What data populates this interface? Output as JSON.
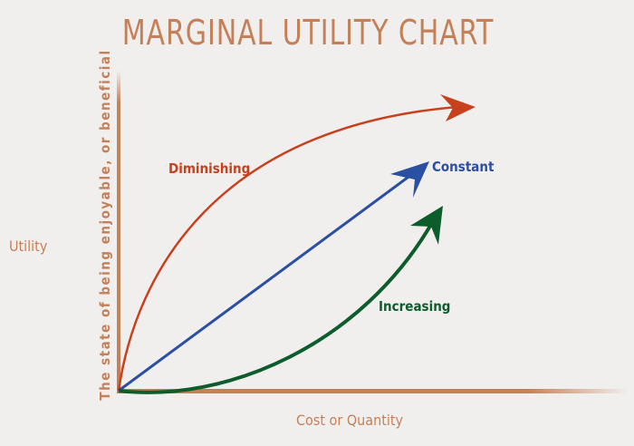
{
  "title": "MARGINAL UTILITY CHART",
  "y_axis": {
    "label": "Utility",
    "description": "The state of being enjoyable, or beneficial"
  },
  "x_axis": {
    "label": "Cost or Quantity"
  },
  "curves": [
    {
      "label": "Diminishing",
      "color": "#c8401c",
      "shape": "concave"
    },
    {
      "label": "Constant",
      "color": "#2b4fa2",
      "shape": "linear"
    },
    {
      "label": "Increasing",
      "color": "#0d5c2b",
      "shape": "convex"
    }
  ],
  "axis_color": "#c48058"
}
